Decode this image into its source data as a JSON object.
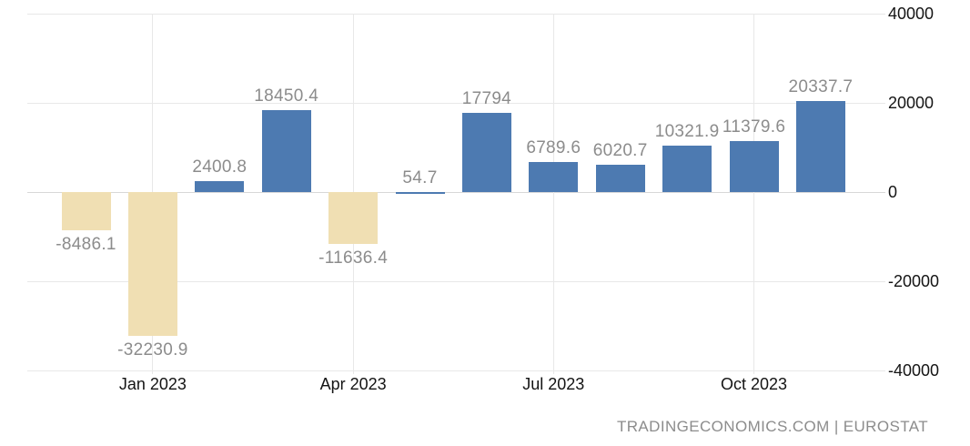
{
  "chart_data": {
    "type": "bar",
    "title": "",
    "categories": [
      "Dec 2022",
      "Jan 2023",
      "Feb 2023",
      "Mar 2023",
      "Apr 2023",
      "May 2023",
      "Jun 2023",
      "Jul 2023",
      "Aug 2023",
      "Sep 2023",
      "Oct 2023",
      "Nov 2023"
    ],
    "values": [
      -8486.1,
      -32230.9,
      2400.8,
      18450.4,
      -11636.4,
      54.7,
      17794,
      6789.6,
      6020.7,
      10321.9,
      11379.6,
      20337.7
    ],
    "point_labels": [
      "-8486.1",
      "-32230.9",
      "2400.8",
      "18450.4",
      "-11636.4",
      "54.7",
      "17794",
      "6789.6",
      "6020.7",
      "10321.9",
      "11379.6",
      "20337.7"
    ],
    "x_axis": {
      "tick_labels": [
        "Jan 2023",
        "Apr 2023",
        "Jul 2023",
        "Oct 2023"
      ],
      "tick_category_indices": [
        1,
        4,
        7,
        10
      ]
    },
    "y_axis": {
      "side": "right",
      "min": -40000,
      "max": 40000,
      "tick_values": [
        40000,
        20000,
        0,
        -20000,
        -40000
      ],
      "tick_labels": [
        "40000",
        "20000",
        "0",
        "-20000",
        "-40000"
      ]
    },
    "grid": true,
    "legend": "none",
    "colors": {
      "positive_bar": "#4d7ab1",
      "negative_bar": "#f0dfb3",
      "grid_line": "#e8e8e8",
      "zero_line": "#d8d8d8",
      "value_label": "#8c8c8c",
      "axis_label": "#141414",
      "background": "#ffffff"
    }
  },
  "footer": {
    "attribution": "TRADINGECONOMICS.COM | EUROSTAT"
  }
}
